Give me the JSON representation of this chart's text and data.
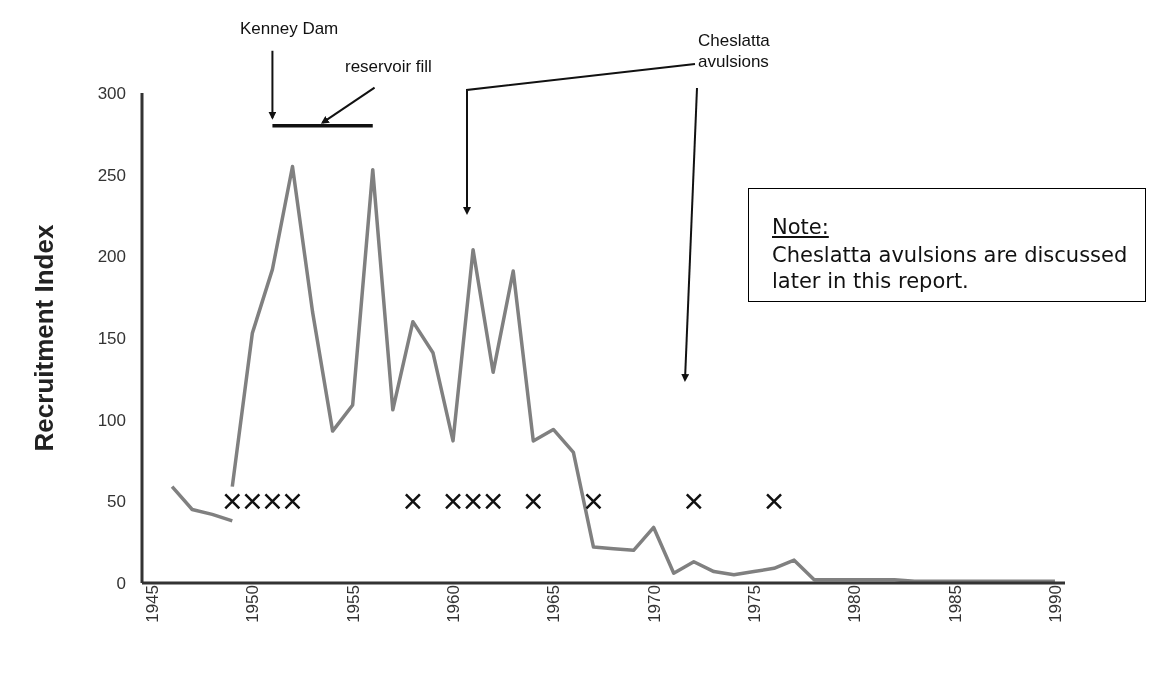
{
  "chart_data": {
    "type": "line",
    "ylabel": "Recruitment Index",
    "xlim": [
      1944.5,
      1990.5
    ],
    "xticks": [
      1945,
      1950,
      1955,
      1960,
      1965,
      1970,
      1975,
      1980,
      1985,
      1990
    ],
    "ylim": [
      0,
      300
    ],
    "yticks": [
      0,
      50,
      100,
      150,
      200,
      250,
      300
    ],
    "grid": false,
    "marker": "none",
    "series": [
      {
        "color": "#808080",
        "x": [
          1946,
          1947,
          1948,
          1949
        ],
        "values": [
          59,
          45,
          42,
          38
        ]
      },
      {
        "color": "#808080",
        "x": [
          1949,
          1950,
          1951,
          1952,
          1953,
          1954,
          1955,
          1956,
          1957,
          1958,
          1959,
          1960,
          1961,
          1962,
          1963,
          1964,
          1965,
          1966,
          1967,
          1968,
          1969,
          1970,
          1971,
          1972,
          1973,
          1974,
          1975,
          1976,
          1977,
          1978,
          1979,
          1980,
          1981,
          1982,
          1983,
          1984,
          1985,
          1986,
          1987,
          1988,
          1989,
          1990
        ],
        "values": [
          59,
          153,
          192,
          255,
          166,
          93,
          109,
          253,
          106,
          160,
          141,
          87,
          204,
          129,
          191,
          87,
          94,
          80,
          22,
          21,
          20,
          34,
          6,
          13,
          7,
          5,
          7,
          9,
          14,
          2,
          2,
          2,
          2,
          2,
          1,
          1,
          1,
          1,
          1,
          1,
          1,
          1
        ]
      },
      {
        "color": "#111111",
        "x": [
          1951,
          1956
        ],
        "values": [
          280,
          280
        ]
      },
      {
        "type": "scatter",
        "color": "#111111",
        "marker": "cross",
        "x": [
          1949,
          1950,
          1951,
          1952,
          1958,
          1960,
          1961,
          1962,
          1964,
          1967,
          1972,
          1976
        ],
        "values": [
          50,
          50,
          50,
          50,
          50,
          50,
          50,
          50,
          50,
          50,
          50,
          50
        ]
      }
    ],
    "annotations": [
      {
        "text": "Kenney Dam",
        "x": 1951,
        "y": 283
      },
      {
        "text": "reservoir fill",
        "x": 1953.5,
        "y": 280
      },
      "Cheslatta avulsions",
      "Note:",
      "Cheslatta avulsions are discussed later in this report."
    ]
  }
}
